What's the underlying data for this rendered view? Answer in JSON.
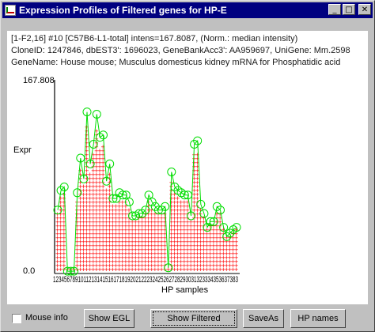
{
  "window": {
    "title": "Expression Profiles of Filtered genes for HP-E",
    "minimize_glyph": "_",
    "maximize_glyph": "□",
    "close_glyph": "✕"
  },
  "info": {
    "line1": "[1-F2,16] #10 [C57B6-L1-total] intens=167.8087, (Norm.: median intensity)",
    "line2": "CloneID: 1247846, dbEST3': 1696023, GeneBankAcc3': AA959697, UniGene: Mm.2598",
    "line3": "GeneName: House mouse; Musculus domesticus kidney mRNA for Phosphatidic acid"
  },
  "chart_data": {
    "type": "line",
    "ylabel": "Expr",
    "xlabel": "HP samples",
    "ylim": [
      0.0,
      167.808
    ],
    "y_tick_labels": [
      "167.808",
      "0.0"
    ],
    "x_tick_text": "1234567891011213141516171819202122232425262728293031323334353637383",
    "colors": {
      "distribution": "#ff0000",
      "profile": "#00dd00",
      "axis": "#000000"
    },
    "series": [
      {
        "values": [
          55,
          72,
          75,
          2,
          2,
          2,
          70,
          100,
          82,
          140,
          95,
          112,
          138,
          118,
          120,
          80,
          95,
          65,
          65,
          70,
          68,
          68,
          62,
          50,
          50,
          52,
          52,
          55,
          68,
          62,
          58,
          55,
          55,
          58,
          5,
          88,
          75,
          72,
          70,
          68,
          68,
          50,
          112,
          115,
          60,
          52,
          40,
          45,
          45,
          58,
          55,
          40,
          32,
          35,
          38,
          40
        ]
      }
    ]
  },
  "controls": {
    "mouse_info_label": "Mouse info",
    "mouse_info_checked": false,
    "show_egl_label": "Show EGL",
    "show_filtered_label": "Show Filtered",
    "saveas_label": "SaveAs",
    "hp_names_label": "HP names"
  }
}
